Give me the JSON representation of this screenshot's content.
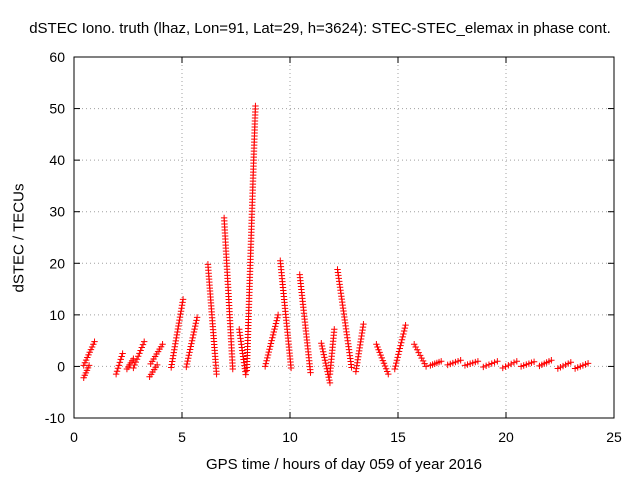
{
  "chart_data": {
    "type": "scatter",
    "title": "dSTEC Iono. truth (lhaz, Lon=91, Lat=29, h=3624): STEC-STEC_elemax in phase cont.",
    "xlabel": "GPS time / hours of day 059 of year 2016",
    "ylabel": "dSTEC  / TECUs",
    "xlim": [
      0,
      25
    ],
    "ylim": [
      -10,
      60
    ],
    "xticks": [
      0,
      5,
      10,
      15,
      20,
      25
    ],
    "yticks": [
      -10,
      0,
      10,
      20,
      30,
      40,
      50,
      60
    ],
    "grid": true,
    "marker": "+",
    "series": [
      {
        "color": "#ff0000",
        "arcs": [
          {
            "x": [
              0.45,
              0.7
            ],
            "y": [
              -2.2,
              0.2
            ]
          },
          {
            "x": [
              0.45,
              0.95
            ],
            "y": [
              0.2,
              4.8
            ]
          },
          {
            "x": [
              1.95,
              2.25
            ],
            "y": [
              -1.5,
              2.5
            ]
          },
          {
            "x": [
              2.45,
              2.75
            ],
            "y": [
              -0.5,
              1.5
            ]
          },
          {
            "x": [
              2.75,
              3.25
            ],
            "y": [
              -0.3,
              4.8
            ]
          },
          {
            "x": [
              3.5,
              3.85
            ],
            "y": [
              -2.0,
              0.3
            ]
          },
          {
            "x": [
              3.55,
              4.1
            ],
            "y": [
              0.5,
              4.3
            ]
          },
          {
            "x": [
              4.5,
              5.05
            ],
            "y": [
              -0.2,
              13.0
            ]
          },
          {
            "x": [
              5.2,
              5.7
            ],
            "y": [
              -0.1,
              9.5
            ]
          },
          {
            "x": [
              6.2,
              6.6
            ],
            "y": [
              19.8,
              -1.5
            ]
          },
          {
            "x": [
              6.95,
              7.35
            ],
            "y": [
              28.8,
              -0.5
            ]
          },
          {
            "x": [
              7.65,
              7.95
            ],
            "y": [
              7.2,
              -1.6
            ]
          },
          {
            "x": [
              8.0,
              8.4
            ],
            "y": [
              -0.8,
              50.5
            ]
          },
          {
            "x": [
              8.85,
              9.45
            ],
            "y": [
              0.0,
              10.0
            ]
          },
          {
            "x": [
              9.55,
              10.05
            ],
            "y": [
              20.5,
              -0.3
            ]
          },
          {
            "x": [
              10.45,
              10.95
            ],
            "y": [
              17.8,
              -1.2
            ]
          },
          {
            "x": [
              11.45,
              11.85
            ],
            "y": [
              4.5,
              -3.2
            ]
          },
          {
            "x": [
              11.85,
              12.05
            ],
            "y": [
              -1.5,
              7.2
            ]
          },
          {
            "x": [
              12.2,
              12.85
            ],
            "y": [
              18.8,
              -0.2
            ]
          },
          {
            "x": [
              13.05,
              13.4
            ],
            "y": [
              -1.0,
              8.2
            ]
          },
          {
            "x": [
              14.0,
              14.55
            ],
            "y": [
              4.3,
              -1.5
            ]
          },
          {
            "x": [
              14.85,
              15.35
            ],
            "y": [
              -0.5,
              8.0
            ]
          },
          {
            "x": [
              15.75,
              16.3
            ],
            "y": [
              4.3,
              0.0
            ]
          },
          {
            "x": [
              16.5,
              17.0
            ],
            "y": [
              0.2,
              1.0
            ]
          },
          {
            "x": [
              17.3,
              17.9
            ],
            "y": [
              0.3,
              1.2
            ]
          },
          {
            "x": [
              18.1,
              18.7
            ],
            "y": [
              0.2,
              1.0
            ]
          },
          {
            "x": [
              18.95,
              19.6
            ],
            "y": [
              -0.1,
              1.0
            ]
          },
          {
            "x": [
              19.85,
              20.5
            ],
            "y": [
              -0.3,
              1.0
            ]
          },
          {
            "x": [
              20.7,
              21.3
            ],
            "y": [
              0.0,
              0.9
            ]
          },
          {
            "x": [
              21.55,
              22.1
            ],
            "y": [
              0.1,
              1.2
            ]
          },
          {
            "x": [
              22.4,
              23.0
            ],
            "y": [
              -0.4,
              0.8
            ]
          },
          {
            "x": [
              23.2,
              23.8
            ],
            "y": [
              -0.4,
              0.6
            ]
          }
        ]
      }
    ]
  }
}
